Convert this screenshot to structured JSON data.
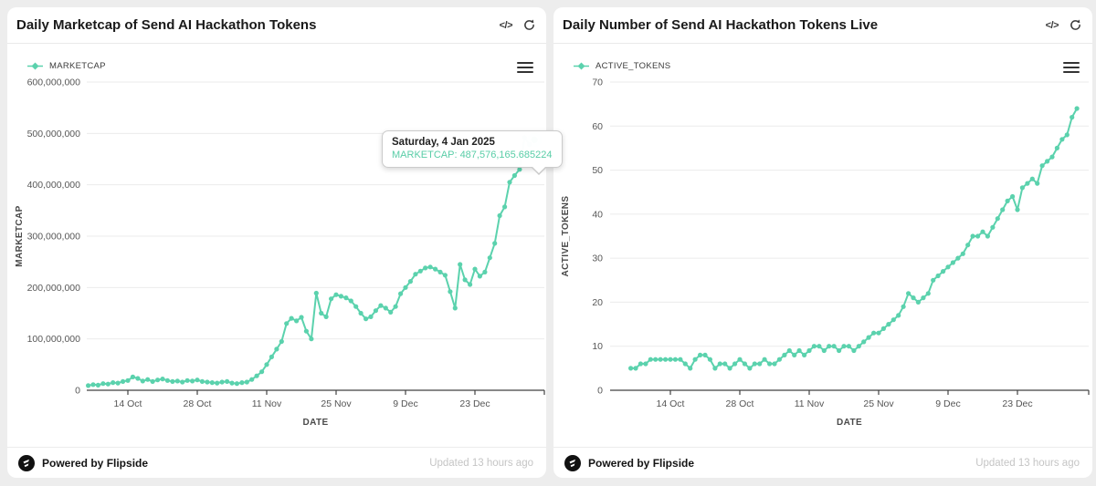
{
  "page": {
    "background": "#ededed",
    "accent_color": "#5bd2ad",
    "axis_color": "#424242",
    "grid_color": "#ebebeb"
  },
  "cards": [
    {
      "title": "Daily Marketcap of Send AI Hackathon Tokens",
      "legend_label": "MARKETCAP",
      "footer": {
        "powered": "Powered by Flipside",
        "updated": "Updated 13 hours ago"
      }
    },
    {
      "title": "Daily Number of Send AI Hackathon Tokens Live",
      "legend_label": "ACTIVE_TOKENS",
      "footer": {
        "powered": "Powered by Flipside",
        "updated": "Updated 13 hours ago"
      }
    }
  ],
  "tooltip": {
    "date": "Saturday, 4 Jan 2025",
    "value_label": "MARKETCAP: 487,576,165.685224"
  },
  "icons": {
    "code": "</>",
    "refresh": "refresh",
    "menu": "hamburger-menu",
    "logo": "flipside"
  },
  "chart_data": [
    {
      "type": "line",
      "title": "Daily Marketcap of Send AI Hackathon Tokens",
      "xlabel": "DATE",
      "ylabel": "MARKETCAP",
      "legend": "MARKETCAP",
      "unit": "USD, values in millions",
      "start_date": "2024-10-06",
      "end_date": "2025-01-04",
      "frequency": "daily",
      "ylim": [
        0,
        600
      ],
      "y_tick_labels": [
        "600,000,000",
        "500,000,000",
        "400,000,000",
        "300,000,000",
        "200,000,000",
        "100,000,000",
        "0"
      ],
      "x_tick_labels": [
        "14 Oct",
        "28 Oct",
        "11 Nov",
        "25 Nov",
        "9 Dec",
        "23 Dec"
      ],
      "grid": true,
      "legend_position": "top-left",
      "highlight_last": true,
      "last_point_exact": 487.576165685224,
      "values": [
        9,
        11,
        10,
        13,
        12,
        15,
        14,
        17,
        19,
        26,
        23,
        18,
        21,
        17,
        20,
        22,
        19,
        17,
        18,
        16,
        19,
        18,
        20,
        17,
        16,
        15,
        14,
        16,
        17,
        14,
        13,
        15,
        16,
        21,
        28,
        36,
        50,
        65,
        80,
        95,
        130,
        140,
        135,
        142,
        115,
        100,
        189,
        150,
        143,
        178,
        186,
        183,
        180,
        174,
        163,
        150,
        139,
        143,
        155,
        165,
        160,
        152,
        163,
        188,
        200,
        212,
        226,
        232,
        238,
        240,
        236,
        230,
        224,
        192,
        160,
        245,
        215,
        206,
        236,
        222,
        230,
        258,
        286,
        340,
        357,
        405,
        418,
        430,
        492,
        478,
        487.576165685224
      ]
    },
    {
      "type": "line",
      "title": "Daily Number of Send AI Hackathon Tokens Live",
      "xlabel": "DATE",
      "ylabel": "ACTIVE_TOKENS",
      "legend": "ACTIVE_TOKENS",
      "unit": "token count",
      "start_date": "2024-10-06",
      "end_date": "2025-01-04",
      "frequency": "daily",
      "ylim": [
        0,
        70
      ],
      "y_tick_labels": [
        "70",
        "60",
        "50",
        "40",
        "30",
        "20",
        "10",
        "0"
      ],
      "x_tick_labels": [
        "14 Oct",
        "28 Oct",
        "11 Nov",
        "25 Nov",
        "9 Dec",
        "23 Dec"
      ],
      "grid": true,
      "legend_position": "top-left",
      "highlight_last": false,
      "values": [
        5,
        5,
        6,
        6,
        7,
        7,
        7,
        7,
        7,
        7,
        7,
        6,
        5,
        7,
        8,
        8,
        7,
        5,
        6,
        6,
        5,
        6,
        7,
        6,
        5,
        6,
        6,
        7,
        6,
        6,
        7,
        8,
        9,
        8,
        9,
        8,
        9,
        10,
        10,
        9,
        10,
        10,
        9,
        10,
        10,
        9,
        10,
        11,
        12,
        13,
        13,
        14,
        15,
        16,
        17,
        19,
        22,
        21,
        20,
        21,
        22,
        25,
        26,
        27,
        28,
        29,
        30,
        31,
        33,
        35,
        35,
        36,
        35,
        37,
        39,
        41,
        43,
        44,
        41,
        46,
        47,
        48,
        47,
        51,
        52,
        53,
        55,
        57,
        58,
        62,
        64
      ]
    }
  ]
}
